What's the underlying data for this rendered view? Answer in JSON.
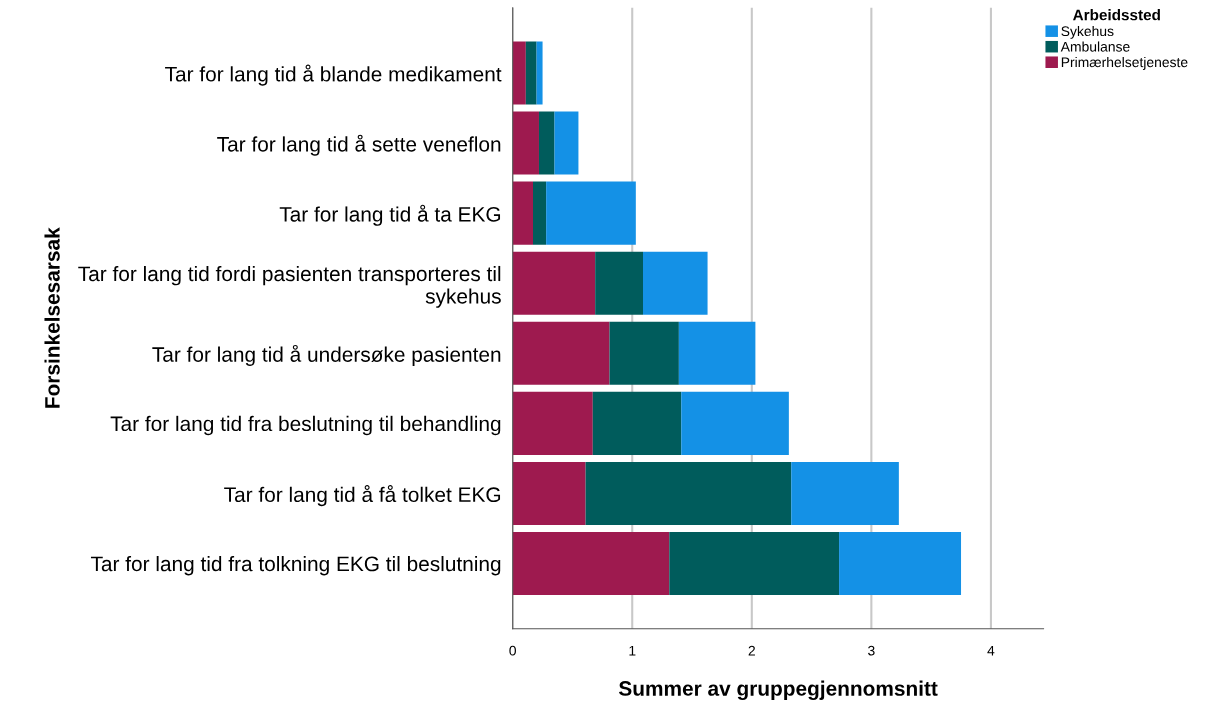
{
  "chart_data": {
    "type": "bar",
    "orientation": "horizontal",
    "stacked": true,
    "xlabel": "Summer av gruppegjennomsnitt",
    "ylabel": "Forsinkelsesarsak",
    "legend_title": "Arbeidssted",
    "categories": [
      "Tar for lang tid å blande medikament",
      "Tar for lang tid å sette veneflon",
      "Tar for lang tid å ta EKG",
      "Tar for lang tid fordi pasienten transporteres til sykehus",
      "Tar for lang tid å undersøke pasienten",
      "Tar for lang tid fra beslutning til behandling",
      "Tar for lang tid å få tolket EKG",
      "Tar for lang tid fra tolkning EKG til beslutning"
    ],
    "series": [
      {
        "name": "Primærhelsetjeneste",
        "color": "#9e1a4f",
        "values": [
          0.11,
          0.22,
          0.17,
          0.69,
          0.81,
          0.67,
          0.61,
          1.31
        ]
      },
      {
        "name": "Ambulanse",
        "color": "#005c5c",
        "values": [
          0.09,
          0.13,
          0.11,
          0.4,
          0.58,
          0.74,
          1.72,
          1.42
        ]
      },
      {
        "name": "Sykehus",
        "color": "#1491e6",
        "values": [
          0.05,
          0.2,
          0.75,
          0.54,
          0.64,
          0.9,
          0.9,
          1.02
        ]
      }
    ],
    "xlim": [
      0,
      4.44
    ],
    "xticks": [
      0,
      1,
      2,
      3,
      4
    ],
    "grid": "x",
    "legend": "top right"
  }
}
